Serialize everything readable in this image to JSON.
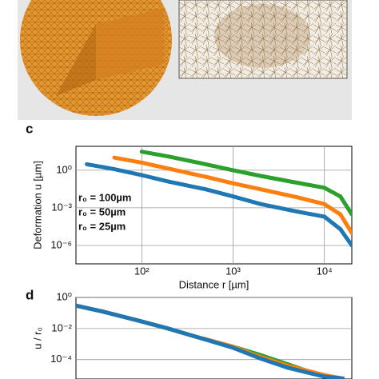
{
  "charts": [
    {
      "panel": "c",
      "type": "line",
      "xscale": "log",
      "yscale": "log",
      "xlabel": "Distance r [µm]",
      "ylabel": "Deformation u [µm]",
      "xlim": [
        19,
        20000
      ],
      "ylim": [
        3.4e-08,
        80
      ],
      "xticks": [
        {
          "value": 100,
          "label": "10²"
        },
        {
          "value": 1000,
          "label": "10³"
        },
        {
          "value": 10000,
          "label": "10⁴"
        }
      ],
      "yticks": [
        {
          "value": 1,
          "label": "10⁰"
        },
        {
          "value": 0.001,
          "label": "10⁻³"
        },
        {
          "value": 1e-06,
          "label": "10⁻⁶"
        }
      ],
      "grid": true,
      "series": [
        {
          "name": "r₀ = 100µm",
          "color": "#2ca02c",
          "x": [
            100,
            200,
            500,
            1000,
            2000,
            5000,
            10000,
            15000,
            20000
          ],
          "values": [
            30,
            12,
            3,
            1,
            0.35,
            0.1,
            0.04,
            0.008,
            0.0003
          ]
        },
        {
          "name": "r₀ = 50µm",
          "color": "#ff7f0e",
          "x": [
            50,
            100,
            200,
            500,
            1000,
            2000,
            5000,
            10000,
            15000,
            20000
          ],
          "values": [
            10,
            4,
            1.3,
            0.3,
            0.09,
            0.03,
            0.007,
            0.002,
            0.0003,
            1e-05
          ]
        },
        {
          "name": "r₀ = 25µm",
          "color": "#1f77b4",
          "x": [
            25,
            50,
            100,
            200,
            500,
            1000,
            2000,
            5000,
            10000,
            15000,
            20000
          ],
          "values": [
            3,
            1.2,
            0.4,
            0.12,
            0.03,
            0.008,
            0.002,
            0.0005,
            0.0002,
            2e-05,
            1e-06
          ]
        }
      ]
    },
    {
      "panel": "d",
      "type": "line",
      "xscale": "log",
      "yscale": "log",
      "ylabel": "u / r₀",
      "xlim": [
        1,
        1000
      ],
      "ylim": [
        5.6e-06,
        1
      ],
      "yticks": [
        {
          "value": 1,
          "label": "10⁰"
        },
        {
          "value": 0.01,
          "label": "10⁻²"
        },
        {
          "value": 0.0001,
          "label": "10⁻⁴"
        }
      ],
      "grid": true,
      "series": [
        {
          "color": "#2ca02c",
          "x": [
            1,
            2,
            5,
            10,
            20,
            50,
            100,
            200,
            500
          ],
          "values": [
            0.3,
            0.12,
            0.03,
            0.01,
            0.003,
            0.0007,
            0.0002,
            5e-05,
            8e-06
          ]
        },
        {
          "color": "#ff7f0e",
          "x": [
            1,
            2,
            5,
            10,
            20,
            50,
            100,
            200,
            500,
            800
          ],
          "values": [
            0.3,
            0.12,
            0.03,
            0.01,
            0.003,
            0.0007,
            0.00015,
            4e-05,
            1e-05,
            6e-06
          ]
        },
        {
          "color": "#1f77b4",
          "x": [
            1,
            2,
            5,
            10,
            20,
            50,
            100,
            200,
            500,
            800
          ],
          "values": [
            0.3,
            0.12,
            0.03,
            0.01,
            0.003,
            0.0006,
            0.00012,
            3e-05,
            8e-06,
            6e-06
          ]
        }
      ]
    }
  ]
}
